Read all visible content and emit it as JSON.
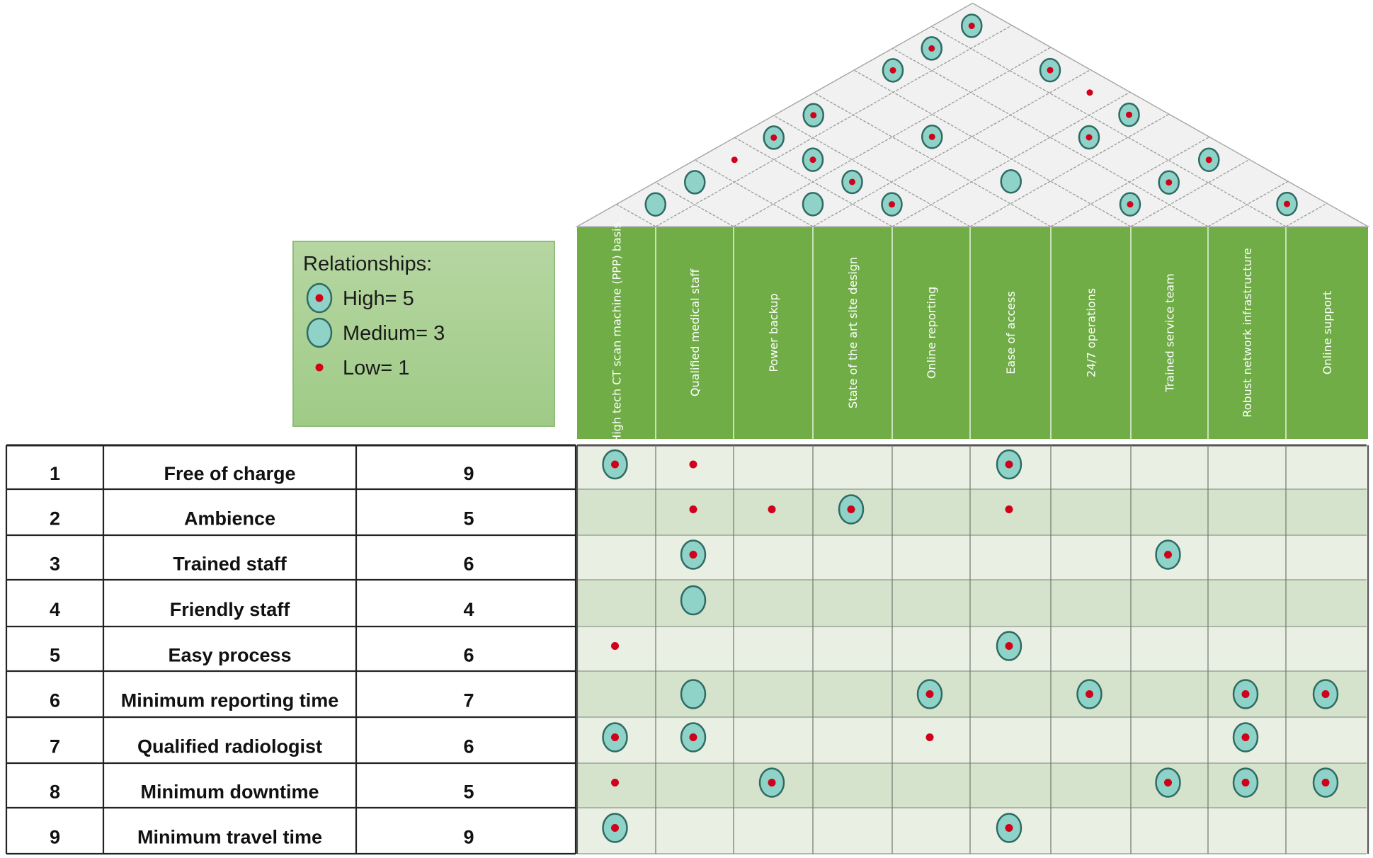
{
  "legend": {
    "title": "Relationships:",
    "items": [
      {
        "symbol": "high",
        "label": "High= 5"
      },
      {
        "symbol": "medium",
        "label": "Medium= 3"
      },
      {
        "symbol": "low",
        "label": "Low= 1"
      }
    ]
  },
  "columns": [
    "High tech CT scan machine (PPP) basis",
    "Qualified medical staff",
    "Power backup",
    "State of the art site design",
    "Online reporting",
    "Ease of access",
    "24/7 operations",
    "Trained service team",
    "Robust network infrastructure",
    "Online support"
  ],
  "rows": [
    {
      "no": "1",
      "need": "Free of charge",
      "importance": "9",
      "rel": {
        "0": "high",
        "1": "low",
        "5": "high"
      }
    },
    {
      "no": "2",
      "need": "Ambience",
      "importance": "5",
      "rel": {
        "1": "low",
        "2": "low",
        "3": "high",
        "5": "low"
      }
    },
    {
      "no": "3",
      "need": "Trained staff",
      "importance": "6",
      "rel": {
        "1": "high",
        "7": "high"
      }
    },
    {
      "no": "4",
      "need": "Friendly staff",
      "importance": "4",
      "rel": {
        "1": "medium"
      }
    },
    {
      "no": "5",
      "need": "Easy process",
      "importance": "6",
      "rel": {
        "0": "low",
        "5": "high"
      }
    },
    {
      "no": "6",
      "need": "Minimum reporting time",
      "importance": "7",
      "rel": {
        "1": "medium",
        "4": "high",
        "6": "high",
        "8": "high",
        "9": "high"
      }
    },
    {
      "no": "7",
      "need": "Qualified radiologist",
      "importance": "6",
      "rel": {
        "0": "high",
        "1": "high",
        "4": "low",
        "8": "high"
      }
    },
    {
      "no": "8",
      "need": "Minimum downtime",
      "importance": "5",
      "rel": {
        "0": "low",
        "2": "high",
        "7": "high",
        "8": "high",
        "9": "high"
      }
    },
    {
      "no": "9",
      "need": "Minimum travel time",
      "importance": "9",
      "rel": {
        "0": "high",
        "5": "high"
      }
    }
  ],
  "roof": [
    {
      "a": 0,
      "b": 9,
      "v": "high"
    },
    {
      "a": 0,
      "b": 8,
      "v": "high"
    },
    {
      "a": 0,
      "b": 7,
      "v": "high"
    },
    {
      "a": 2,
      "b": 9,
      "v": "high"
    },
    {
      "a": 3,
      "b": 9,
      "v": "low"
    },
    {
      "a": 0,
      "b": 5,
      "v": "high"
    },
    {
      "a": 4,
      "b": 9,
      "v": "high"
    },
    {
      "a": 0,
      "b": 4,
      "v": "high"
    },
    {
      "a": 2,
      "b": 6,
      "v": "high"
    },
    {
      "a": 4,
      "b": 8,
      "v": "high"
    },
    {
      "a": 0,
      "b": 3,
      "v": "low"
    },
    {
      "a": 1,
      "b": 4,
      "v": "high"
    },
    {
      "a": 6,
      "b": 9,
      "v": "high"
    },
    {
      "a": 0,
      "b": 2,
      "v": "medium"
    },
    {
      "a": 2,
      "b": 4,
      "v": "high"
    },
    {
      "a": 4,
      "b": 6,
      "v": "medium"
    },
    {
      "a": 6,
      "b": 8,
      "v": "high"
    },
    {
      "a": 0,
      "b": 1,
      "v": "medium"
    },
    {
      "a": 2,
      "b": 3,
      "v": "medium"
    },
    {
      "a": 3,
      "b": 4,
      "v": "high"
    },
    {
      "a": 6,
      "b": 7,
      "v": "high"
    },
    {
      "a": 8,
      "b": 9,
      "v": "high"
    }
  ],
  "colors": {
    "header_green": "#70ad47",
    "symbol_fill": "#8fd3c8",
    "symbol_stroke": "#2f6b63",
    "dot_red": "#d0021b",
    "row_light": "#e9f0e3",
    "row_dark": "#d5e3cc",
    "roof_fill": "#f1f1f1"
  }
}
